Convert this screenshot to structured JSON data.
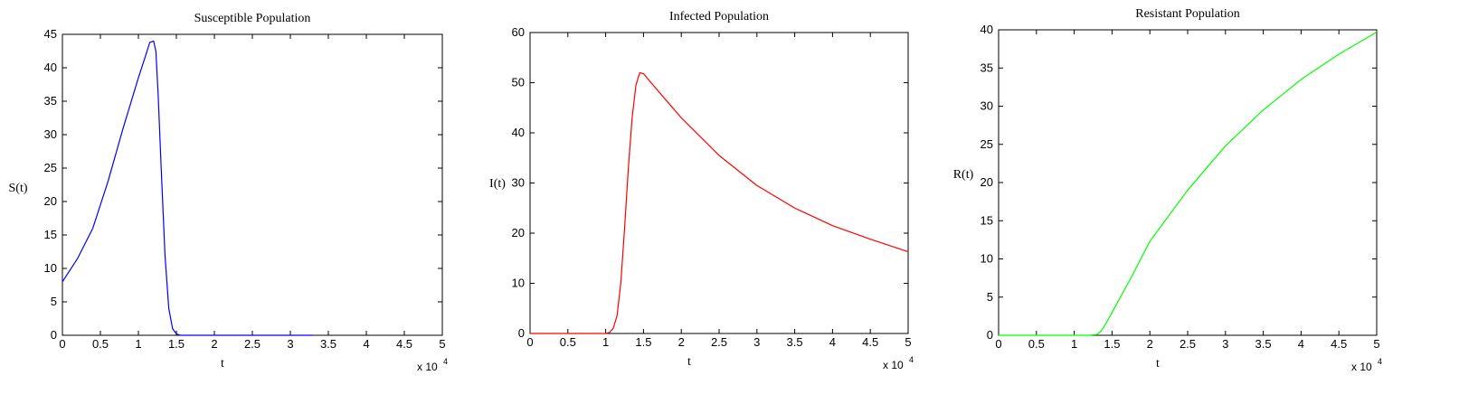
{
  "chart_data": [
    {
      "type": "line",
      "title": "Susceptible Population",
      "xlabel": "t",
      "ylabel": "S(t)",
      "xlim": [
        0,
        5
      ],
      "ylim": [
        0,
        45
      ],
      "x_ticks": [
        "0",
        "0.5",
        "1",
        "1.5",
        "2",
        "2.5",
        "3",
        "3.5",
        "4",
        "4.5",
        "5"
      ],
      "y_ticks": [
        "0",
        "5",
        "10",
        "15",
        "20",
        "25",
        "30",
        "35",
        "40",
        "45"
      ],
      "x_multiplier": "x 10",
      "x_multiplier_exp": "4",
      "grid": false,
      "color": "#0000ff",
      "series": [
        {
          "x": [
            0,
            0.2,
            0.4,
            0.6,
            0.8,
            1.0,
            1.1,
            1.15,
            1.2,
            1.23,
            1.26,
            1.3,
            1.35,
            1.4,
            1.45,
            1.5,
            1.55,
            1.6,
            2.0,
            2.5,
            3.0,
            3.3
          ],
          "y": [
            8,
            11.5,
            16,
            23,
            31,
            38.5,
            42,
            43.8,
            44,
            42.5,
            36,
            25,
            12,
            4,
            1,
            0.2,
            0,
            0,
            0,
            0,
            0,
            0
          ]
        }
      ]
    },
    {
      "type": "line",
      "title": "Infected Population",
      "xlabel": "t",
      "ylabel": "I(t)",
      "xlim": [
        0,
        5
      ],
      "ylim": [
        0,
        60
      ],
      "x_ticks": [
        "0",
        "0.5",
        "1",
        "1.5",
        "2",
        "2.5",
        "3",
        "3.5",
        "4",
        "4.5",
        "5"
      ],
      "y_ticks": [
        "0",
        "10",
        "20",
        "30",
        "40",
        "50",
        "60"
      ],
      "x_multiplier": "x 10",
      "x_multiplier_exp": "4",
      "grid": false,
      "color": "#ff0000",
      "series": [
        {
          "x": [
            0,
            0.5,
            1.0,
            1.05,
            1.1,
            1.15,
            1.2,
            1.25,
            1.3,
            1.35,
            1.4,
            1.45,
            1.5,
            1.6,
            1.8,
            2.0,
            2.5,
            3.0,
            3.5,
            4.0,
            4.5,
            5.0
          ],
          "y": [
            0,
            0,
            0,
            0.2,
            1,
            3.5,
            10,
            21,
            33,
            43,
            49.5,
            52,
            51.8,
            50,
            46.5,
            43,
            35.5,
            29.5,
            25,
            21.5,
            18.8,
            16.3
          ]
        }
      ]
    },
    {
      "type": "line",
      "title": "Resistant Population",
      "xlabel": "t",
      "ylabel": "R(t)",
      "xlim": [
        0,
        5
      ],
      "ylim": [
        0,
        40
      ],
      "x_ticks": [
        "0",
        "0.5",
        "1",
        "1.5",
        "2",
        "2.5",
        "3",
        "3.5",
        "4",
        "4.5",
        "5"
      ],
      "y_ticks": [
        "0",
        "5",
        "10",
        "15",
        "20",
        "25",
        "30",
        "35",
        "40"
      ],
      "x_multiplier": "x 10",
      "x_multiplier_exp": "4",
      "grid": false,
      "color": "#00ff00",
      "series": [
        {
          "x": [
            0,
            0.5,
            1.0,
            1.2,
            1.3,
            1.35,
            1.4,
            1.5,
            1.75,
            2.0,
            2.5,
            3.0,
            3.5,
            4.0,
            4.5,
            5.0
          ],
          "y": [
            0,
            0,
            0,
            0,
            0.1,
            0.5,
            1.2,
            3,
            7.5,
            12.3,
            19,
            24.8,
            29.5,
            33.5,
            36.8,
            39.7
          ]
        }
      ]
    }
  ]
}
